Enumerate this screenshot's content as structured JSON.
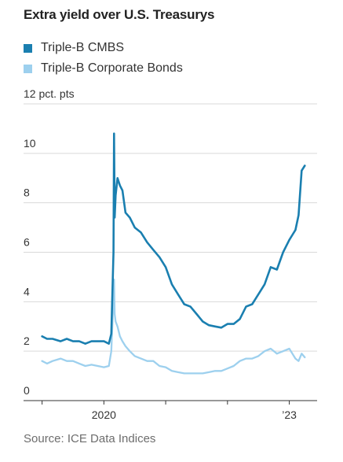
{
  "title": "Extra yield over U.S. Treasurys",
  "source": "Source: ICE Data Indices",
  "colors": {
    "cmbs": "#1a7fb0",
    "corporate": "#9dd0ee",
    "grid": "#d9d9d9",
    "axis": "#333333"
  },
  "chart_data": {
    "type": "line",
    "title": "Extra yield over U.S. Treasurys",
    "ylabel": "12 pct. pts",
    "ylim": [
      0,
      12
    ],
    "xlim": [
      2018.7,
      2023.45
    ],
    "y_ticks": [
      {
        "value": 0,
        "label": "0"
      },
      {
        "value": 2,
        "label": "2"
      },
      {
        "value": 4,
        "label": "4"
      },
      {
        "value": 6,
        "label": "6"
      },
      {
        "value": 8,
        "label": "8"
      },
      {
        "value": 10,
        "label": "10"
      },
      {
        "value": 12,
        "label": "12 pct. pts"
      }
    ],
    "x_ticks": [
      2019,
      2020,
      2021,
      2022,
      2023
    ],
    "x_tick_labels": [
      {
        "value": 2020,
        "label": "2020"
      },
      {
        "value": 2023,
        "label": "’23"
      }
    ],
    "legend": "top-left",
    "grid": true,
    "series": [
      {
        "name": "Triple-B CMBS",
        "color": "#1a7fb0",
        "x": [
          2019.0,
          2019.08,
          2019.17,
          2019.3,
          2019.4,
          2019.5,
          2019.6,
          2019.7,
          2019.8,
          2019.9,
          2020.0,
          2020.08,
          2020.12,
          2020.155,
          2020.165,
          2020.175,
          2020.19,
          2020.22,
          2020.26,
          2020.3,
          2020.35,
          2020.42,
          2020.5,
          2020.6,
          2020.7,
          2020.8,
          2020.9,
          2021.0,
          2021.1,
          2021.2,
          2021.3,
          2021.4,
          2021.5,
          2021.6,
          2021.7,
          2021.8,
          2021.9,
          2022.0,
          2022.1,
          2022.2,
          2022.3,
          2022.4,
          2022.5,
          2022.6,
          2022.7,
          2022.8,
          2022.9,
          2023.0,
          2023.05,
          2023.1,
          2023.15,
          2023.2,
          2023.25
        ],
        "y": [
          2.6,
          2.5,
          2.5,
          2.4,
          2.5,
          2.4,
          2.4,
          2.3,
          2.4,
          2.4,
          2.4,
          2.3,
          2.7,
          6.0,
          10.8,
          7.4,
          8.3,
          9.0,
          8.7,
          8.5,
          7.6,
          7.4,
          7.0,
          6.8,
          6.4,
          6.1,
          5.8,
          5.4,
          4.7,
          4.3,
          3.9,
          3.8,
          3.5,
          3.2,
          3.05,
          3.0,
          2.95,
          3.1,
          3.1,
          3.3,
          3.8,
          3.9,
          4.3,
          4.7,
          5.4,
          5.3,
          6.0,
          6.5,
          6.7,
          6.9,
          7.5,
          9.3,
          9.5
        ]
      },
      {
        "name": "Triple-B Corporate Bonds",
        "color": "#9dd0ee",
        "x": [
          2019.0,
          2019.08,
          2019.17,
          2019.3,
          2019.4,
          2019.5,
          2019.6,
          2019.7,
          2019.8,
          2019.9,
          2020.0,
          2020.08,
          2020.12,
          2020.155,
          2020.165,
          2020.175,
          2020.19,
          2020.22,
          2020.26,
          2020.3,
          2020.35,
          2020.42,
          2020.5,
          2020.6,
          2020.7,
          2020.8,
          2020.9,
          2021.0,
          2021.1,
          2021.2,
          2021.3,
          2021.4,
          2021.5,
          2021.6,
          2021.7,
          2021.8,
          2021.9,
          2022.0,
          2022.1,
          2022.2,
          2022.3,
          2022.4,
          2022.5,
          2022.6,
          2022.7,
          2022.8,
          2022.9,
          2023.0,
          2023.05,
          2023.1,
          2023.15,
          2023.2,
          2023.25
        ],
        "y": [
          1.6,
          1.5,
          1.6,
          1.7,
          1.6,
          1.6,
          1.5,
          1.4,
          1.45,
          1.4,
          1.35,
          1.4,
          2.0,
          4.2,
          4.9,
          3.5,
          3.2,
          3.0,
          2.6,
          2.4,
          2.2,
          2.0,
          1.8,
          1.7,
          1.6,
          1.6,
          1.4,
          1.35,
          1.2,
          1.15,
          1.1,
          1.1,
          1.1,
          1.1,
          1.15,
          1.2,
          1.2,
          1.3,
          1.4,
          1.6,
          1.7,
          1.7,
          1.8,
          2.0,
          2.1,
          1.9,
          2.0,
          2.1,
          1.9,
          1.7,
          1.6,
          1.9,
          1.75
        ]
      }
    ]
  }
}
